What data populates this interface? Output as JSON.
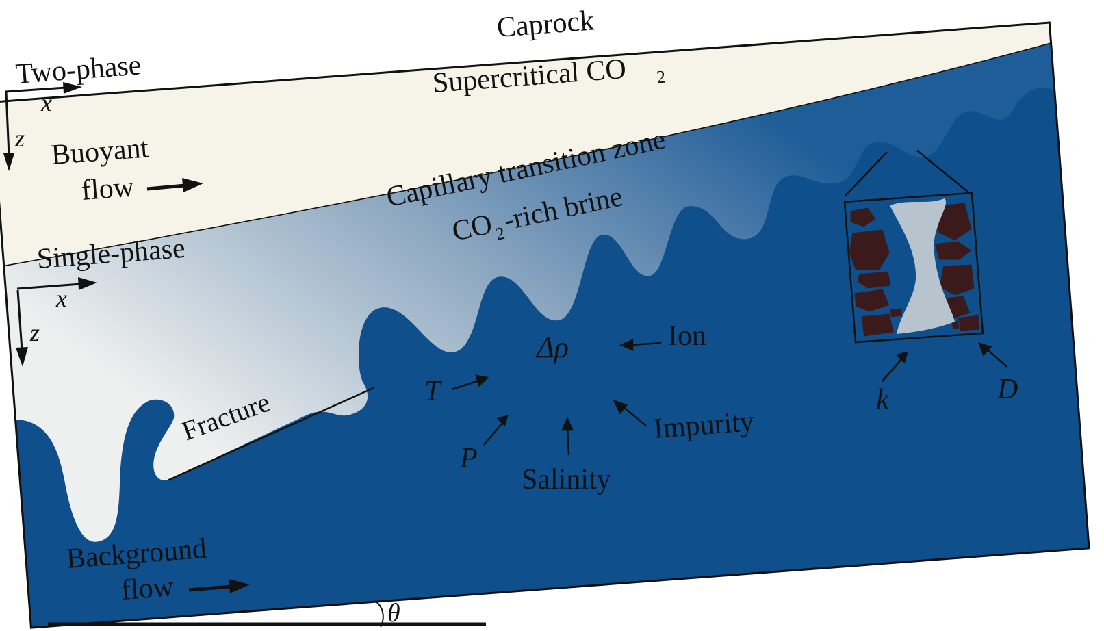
{
  "labels": {
    "caprock": "Caprock",
    "supercritical": "Supercritical CO",
    "supercritical_sub": "2",
    "two_phase": "Two-phase",
    "buoyant": "Buoyant",
    "buoyant_flow": "flow",
    "capillary_zone": "Capillary transition zone",
    "co2_rich_brine_pre": "CO",
    "co2_rich_brine_sub": "2",
    "co2_rich_brine_post": "-rich brine",
    "single_phase": "Single-phase",
    "fracture": "Fracture",
    "delta_rho": "Δρ",
    "ion": "Ion",
    "temperature": "T",
    "pressure": "P",
    "salinity": "Salinity",
    "impurity": "Impurity",
    "permeability": "k",
    "diffusion": "D",
    "background": "Background",
    "background_flow": "flow",
    "axis_x_top": "x",
    "axis_z_top": "z",
    "axis_x_bottom": "x",
    "axis_z_bottom": "z",
    "theta": "θ"
  },
  "colors": {
    "caprock_fill": "#f6f4e8",
    "brine_dark": "#0e4f8c",
    "brine_light": "#e8ecee",
    "grain": "#3a1a1a",
    "outline": "#111111"
  }
}
